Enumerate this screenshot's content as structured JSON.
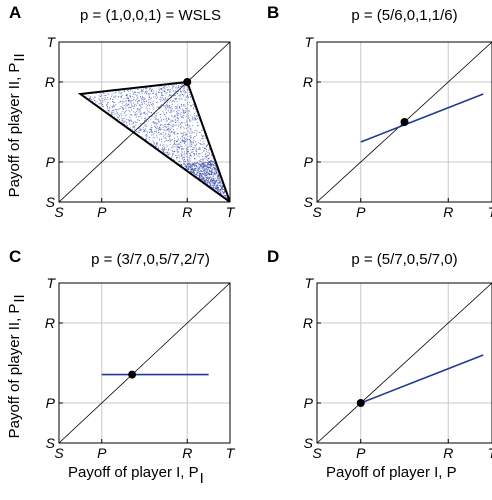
{
  "chart_data": [
    {
      "panel": "A",
      "type": "scatter",
      "title": "p = (1,0,0,1) = WSLS",
      "xlabel": "",
      "ylabel": "Payoff of player II, P",
      "ylabel_sub": "II",
      "payoff_values": {
        "S": 0,
        "P": 1,
        "R": 3,
        "T": 4
      },
      "x_ticks": [
        "S",
        "P",
        "R",
        "T"
      ],
      "y_ticks": [
        "S",
        "P",
        "R",
        "T"
      ],
      "xlim": [
        0,
        4
      ],
      "ylim": [
        0,
        4
      ],
      "grid": true,
      "cloud_polygon": [
        [
          0.5,
          2.7
        ],
        [
          3,
          3
        ],
        [
          4,
          0
        ]
      ],
      "stable_point": [
        3,
        3
      ],
      "point_color": "#2b45a8"
    },
    {
      "panel": "B",
      "type": "line",
      "title": "p = (5/6,0,1,1/6)",
      "xlabel": "",
      "ylabel": "",
      "payoff_values": {
        "S": 0,
        "P": 1,
        "R": 3,
        "T": 4
      },
      "x_ticks": [
        "S",
        "P",
        "R",
        "T"
      ],
      "y_ticks": [
        "S",
        "P",
        "R",
        "T"
      ],
      "xlim": [
        0,
        4
      ],
      "ylim": [
        0,
        4
      ],
      "grid": true,
      "segment": [
        [
          1,
          1.5
        ],
        [
          3.8,
          2.7
        ]
      ],
      "stable_point": [
        2,
        2
      ],
      "line_color": "#1f3a93"
    },
    {
      "panel": "C",
      "type": "line",
      "title": "p = (3/7,0,5/7,2/7)",
      "xlabel": "Payoff of player I, P",
      "xlabel_sub": "I",
      "ylabel": "Payoff of player II, P",
      "ylabel_sub": "II",
      "payoff_values": {
        "S": 0,
        "P": 1,
        "R": 3,
        "T": 4
      },
      "x_ticks": [
        "S",
        "P",
        "R",
        "T"
      ],
      "y_ticks": [
        "S",
        "P",
        "R",
        "T"
      ],
      "xlim": [
        0,
        4
      ],
      "ylim": [
        0,
        4
      ],
      "grid": true,
      "segment": [
        [
          1,
          1.71
        ],
        [
          3.5,
          1.71
        ]
      ],
      "stable_point": [
        1.71,
        1.71
      ],
      "line_color": "#1f3a93"
    },
    {
      "panel": "D",
      "type": "line",
      "title": "p = (5/7,0,5/7,0)",
      "xlabel": "Payoff of player I, P",
      "xlabel_sub": "",
      "ylabel": "",
      "payoff_values": {
        "S": 0,
        "P": 1,
        "R": 3,
        "T": 4
      },
      "x_ticks": [
        "S",
        "P",
        "R",
        "T"
      ],
      "y_ticks": [
        "S",
        "P",
        "R",
        "T"
      ],
      "xlim": [
        0,
        4
      ],
      "ylim": [
        0,
        4
      ],
      "grid": true,
      "segment": [
        [
          1,
          1
        ],
        [
          3.8,
          2.2
        ]
      ],
      "stable_point": [
        1,
        1
      ],
      "line_color": "#1f3a93"
    }
  ]
}
